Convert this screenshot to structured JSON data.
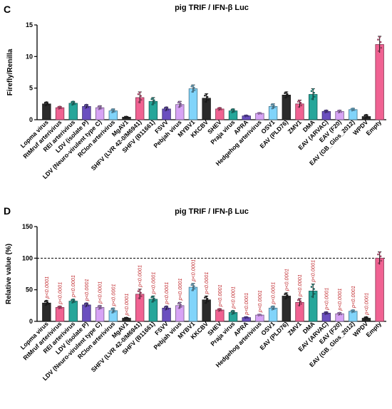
{
  "chart_data": [
    {
      "panel": "C",
      "type": "bar",
      "title": "pig TRIF / IFN-β Luc",
      "ylabel": "Firefly/Renilla",
      "xlabel": "",
      "ylim": [
        0,
        15
      ],
      "yticks": [
        0,
        5,
        10,
        15
      ],
      "grid": false,
      "categories": [
        "Lopma virus",
        "RtMruf arterivirus",
        "REI arterivirus",
        "LDV (isolate P)",
        "LDV (Neuro-virulent type C)",
        "RCIon arterivirus",
        "MgAV1",
        "SHFV (LVR 42-0/M6941)",
        "SHFV (B11661)",
        "FSVV",
        "Pebjah virus",
        "MYBV1",
        "KKCBV",
        "SHEV",
        "Praja virus",
        "APRA",
        "Hedgehog arterivirus",
        "OSV1",
        "EAV (PLD76)",
        "ZMV1",
        "DMA",
        "EAV (ARVAC)",
        "EAV (F20)",
        "EAV (GB_Glos_2012)",
        "WPDV",
        "Empty"
      ],
      "values": [
        2.5,
        1.9,
        2.6,
        2.1,
        1.9,
        1.4,
        0.4,
        3.5,
        2.9,
        1.7,
        2.4,
        4.9,
        3.4,
        1.7,
        1.4,
        0.6,
        1.0,
        2.1,
        3.9,
        2.5,
        4.0,
        1.3,
        1.3,
        1.6,
        0.5,
        11.9
      ],
      "errors": [
        0.3,
        0.2,
        0.3,
        0.3,
        0.3,
        0.3,
        0.1,
        0.9,
        0.6,
        0.3,
        0.5,
        0.6,
        0.7,
        0.2,
        0.3,
        0.1,
        0.1,
        0.4,
        0.5,
        0.6,
        0.9,
        0.2,
        0.2,
        0.2,
        0.3,
        1.3
      ]
    },
    {
      "panel": "D",
      "type": "bar",
      "title": "pig TRIF / IFN-β Luc",
      "ylabel": "Relative value (%)",
      "xlabel": "",
      "ylim": [
        0,
        150
      ],
      "yticks": [
        0,
        50,
        100,
        150
      ],
      "grid": false,
      "reference_line": 100,
      "categories": [
        "Lopma virus",
        "RtMruf arterivirus",
        "REI arterivirus",
        "LDV (isolate P)",
        "LDV (Neuro-virulent type C)",
        "RCIon arterivirus",
        "MgAV1",
        "SHFV (LVR 42-0/M6941)",
        "SHFV (B11661)",
        "FSVV",
        "Pebjah virus",
        "MYBV1",
        "KKCBV",
        "SHEV",
        "Praja virus",
        "APRA",
        "Hedgehog arterivirus",
        "OSV1",
        "EAV (PLD76)",
        "ZMV1",
        "DMA",
        "EAV (ARVAC)",
        "EAV (F20)",
        "EAV (GB_Glos_2012)",
        "WPDV",
        "Empty"
      ],
      "values": [
        29,
        22,
        32,
        26,
        22,
        17,
        5,
        43,
        35,
        21,
        25,
        54,
        34,
        18,
        14,
        6,
        10,
        21,
        40,
        30,
        48,
        13,
        12,
        16,
        5,
        100
      ],
      "errors": [
        4,
        2,
        3,
        3,
        3,
        4,
        1,
        8,
        5,
        3,
        5,
        6,
        6,
        2,
        3,
        1,
        1,
        3,
        5,
        6,
        11,
        2,
        2,
        2,
        2,
        10
      ],
      "annotations": [
        "p<0.0001",
        "p<0.0001",
        "p<0.0001",
        "p<0.0001",
        "p<0.0001",
        "p<0.0001",
        "p<0.0001",
        "p<0.0001",
        "p<0.0001",
        "p<0.0001",
        "p<0.0001",
        "p<0.0001",
        "p<0.0001",
        "p<0.0001",
        "p<0.0001",
        "p<0.0001",
        "p<0.0001",
        "p<0.0001",
        "p<0.0001",
        "p<0.0001",
        "p<0.0001",
        "p<0.0001",
        "p<0.0001",
        "p<0.0001",
        "p<0.0001",
        ""
      ]
    }
  ],
  "colors": [
    "#2b2b2b",
    "#f06292",
    "#26a69a",
    "#6a4fbf",
    "#d7a3f5",
    "#81d4fa",
    "#2b2b2b",
    "#f06292",
    "#26a69a",
    "#6a4fbf",
    "#d7a3f5",
    "#81d4fa",
    "#2b2b2b",
    "#f06292",
    "#26a69a",
    "#6a4fbf",
    "#d7a3f5",
    "#81d4fa",
    "#2b2b2b",
    "#f06292",
    "#26a69a",
    "#6a4fbf",
    "#d7a3f5",
    "#81d4fa",
    "#2b2b2b",
    "#f06292"
  ]
}
